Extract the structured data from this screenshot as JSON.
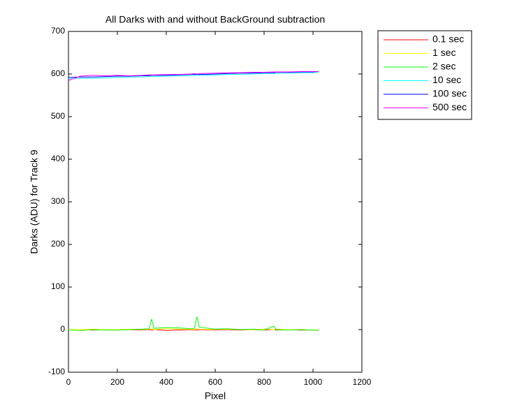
{
  "chart_data": {
    "type": "line",
    "title": "All Darks with and without BackGround subtraction",
    "x_label": "Pixel",
    "y_label": "Darks (ADU) for Track 9",
    "x": [
      0,
      50,
      100,
      150,
      200,
      250,
      300,
      330,
      340,
      350,
      400,
      450,
      500,
      515,
      525,
      535,
      600,
      650,
      700,
      750,
      800,
      840,
      850,
      900,
      950,
      1000,
      1023
    ],
    "series": [
      {
        "name": "0.1 sec",
        "color": "#ff0000",
        "values": [
          -1,
          0,
          -1,
          0,
          -1,
          0,
          -1,
          0,
          -1,
          0,
          -2,
          -1,
          0,
          -1,
          -1,
          0,
          -1,
          0,
          -1,
          0,
          -1,
          0,
          -1,
          0,
          -1,
          -1,
          -2
        ]
      },
      {
        "name": "1 sec",
        "color": "#ffff00",
        "values": [
          0,
          0,
          1,
          0,
          0,
          1,
          0,
          1,
          2,
          0,
          2,
          1,
          1,
          0,
          3,
          1,
          0,
          1,
          0,
          0,
          1,
          0,
          1,
          0,
          0,
          -1,
          -1
        ]
      },
      {
        "name": "2 sec",
        "color": "#00ff00",
        "values": [
          -1,
          -2,
          0,
          -1,
          -1,
          0,
          1,
          2,
          25,
          3,
          5,
          4,
          2,
          3,
          30,
          6,
          1,
          2,
          0,
          1,
          -1,
          8,
          0,
          -1,
          0,
          -1,
          -2
        ]
      },
      {
        "name": "10 sec",
        "color": "#00ffff",
        "values": [
          589,
          590,
          590,
          591,
          592,
          593,
          593,
          594,
          594,
          594,
          595,
          596,
          596,
          597,
          597,
          597,
          598,
          599,
          599,
          600,
          601,
          601,
          601,
          602,
          603,
          603,
          604
        ]
      },
      {
        "name": "100 sec",
        "color": "#0000ff",
        "values": [
          592,
          593,
          593,
          594,
          595,
          595,
          596,
          596,
          597,
          597,
          597,
          598,
          599,
          599,
          599,
          599,
          600,
          601,
          602,
          602,
          603,
          603,
          604,
          604,
          605,
          605,
          606
        ]
      },
      {
        "name": "500 sec",
        "color": "#ff00ff",
        "values": [
          585,
          595,
          597,
          596,
          597,
          596,
          597,
          598,
          598,
          598,
          599,
          599,
          600,
          601,
          600,
          601,
          602,
          603,
          603,
          604,
          604,
          605,
          605,
          605,
          606,
          606,
          606
        ]
      }
    ],
    "xlim": [
      0,
      1200
    ],
    "xticks": [
      0,
      200,
      400,
      600,
      800,
      1000,
      1200
    ],
    "ylim": [
      -100,
      700
    ],
    "yticks": [
      -100,
      0,
      100,
      200,
      300,
      400,
      500,
      600,
      700
    ],
    "legend": "outside-right"
  }
}
